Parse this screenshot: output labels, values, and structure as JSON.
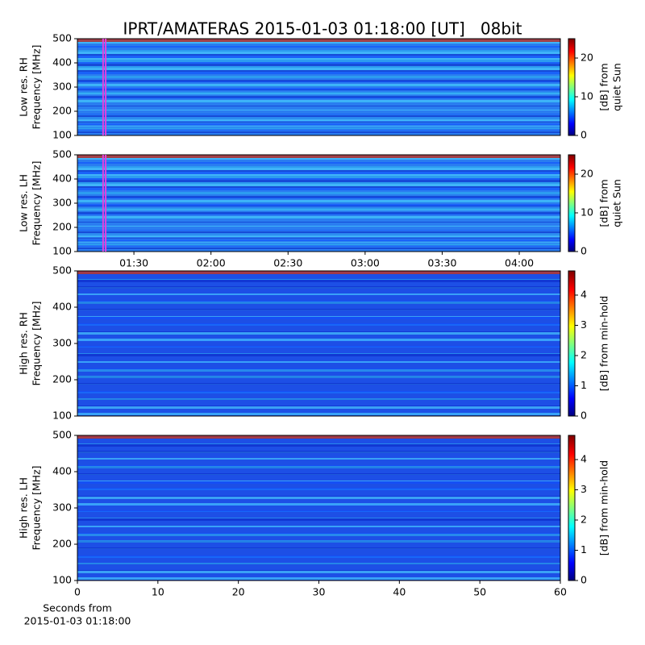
{
  "chart_data": [
    {
      "type": "heatmap",
      "title": "IPRT/AMATERAS 2015-01-03 01:18:00 [UT]   08bit",
      "ylabel": [
        "Low res. RH",
        "Frequency [MHz]"
      ],
      "ylim": [
        100,
        500
      ],
      "yticks": [
        100,
        200,
        300,
        400,
        500
      ],
      "xlim": [
        "01:08",
        "04:16"
      ],
      "markers": [
        "01:18",
        "01:19"
      ],
      "marker_color": "#e040e0",
      "colormap": "jet",
      "colorbar": {
        "label": [
          "[dB] from",
          "quiet Sun"
        ],
        "lim": [
          0,
          25
        ],
        "ticks": [
          0,
          10,
          20
        ]
      }
    },
    {
      "type": "heatmap",
      "ylabel": [
        "Low res. LH",
        "Frequency [MHz]"
      ],
      "ylim": [
        100,
        500
      ],
      "yticks": [
        100,
        200,
        300,
        400,
        500
      ],
      "xlim": [
        "01:08",
        "04:16"
      ],
      "xticks": [
        "01:30",
        "02:00",
        "02:30",
        "03:00",
        "03:30",
        "04:00"
      ],
      "markers": [
        "01:18",
        "01:19"
      ],
      "marker_color": "#e040e0",
      "colormap": "jet",
      "colorbar": {
        "label": [
          "[dB] from",
          "quiet Sun"
        ],
        "lim": [
          0,
          25
        ],
        "ticks": [
          0,
          10,
          20
        ]
      }
    },
    {
      "type": "heatmap",
      "ylabel": [
        "High res. RH",
        "Frequency [MHz]"
      ],
      "ylim": [
        100,
        500
      ],
      "yticks": [
        100,
        200,
        300,
        400,
        500
      ],
      "xlim": [
        0,
        60
      ],
      "colormap": "jet",
      "colorbar": {
        "label": [
          "[dB] from min-hold"
        ],
        "lim": [
          0,
          4.8
        ],
        "ticks": [
          0,
          1,
          2,
          3,
          4
        ]
      }
    },
    {
      "type": "heatmap",
      "ylabel": [
        "High res. LH",
        "Frequency [MHz]"
      ],
      "ylim": [
        100,
        500
      ],
      "yticks": [
        100,
        200,
        300,
        400,
        500
      ],
      "xlim": [
        0,
        60
      ],
      "xticks": [
        0,
        10,
        20,
        30,
        40,
        50,
        60
      ],
      "xlabel": [
        "Seconds from",
        "2015-01-03 01:18:00"
      ],
      "colormap": "jet",
      "colorbar": {
        "label": [
          "[dB] from min-hold"
        ],
        "lim": [
          0,
          4.8
        ],
        "ticks": [
          0,
          1,
          2,
          3,
          4
        ]
      }
    }
  ]
}
